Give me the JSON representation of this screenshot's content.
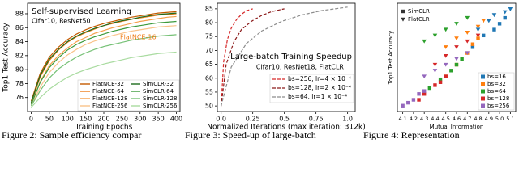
{
  "charts": [
    {
      "type": "line",
      "title": "Self-supervised Learning",
      "subtitle": "Cifar10, ResNet50",
      "annotation": "FlatNCE-16",
      "annotation_color": "#ee7d1a",
      "xlabel": "Training Epochs",
      "ylabel": "Top1 Test Accuracy",
      "xlim": [
        -10,
        410
      ],
      "ylim": [
        74,
        89.5
      ],
      "xticks": [
        0,
        50,
        100,
        150,
        200,
        250,
        300,
        350,
        400
      ],
      "yticks": [
        76,
        78,
        80,
        82,
        84,
        86,
        88
      ],
      "dashed": false,
      "x": [
        0,
        25,
        50,
        75,
        100,
        125,
        150,
        175,
        200,
        225,
        250,
        275,
        300,
        325,
        350,
        375,
        400
      ],
      "series": [
        {
          "name": "FlatNCE-32",
          "color": "#c45a00",
          "values": [
            75.5,
            79.5,
            81.8,
            83.2,
            84.3,
            85.1,
            85.7,
            86.2,
            86.6,
            86.9,
            87.2,
            87.5,
            87.7,
            87.9,
            88.1,
            88.2,
            88.3
          ]
        },
        {
          "name": "FlatNCE-64",
          "color": "#ee7d1a",
          "values": [
            75.2,
            79,
            81.3,
            82.8,
            83.9,
            84.7,
            85.3,
            85.8,
            86.3,
            86.6,
            86.9,
            87.2,
            87.4,
            87.6,
            87.8,
            87.9,
            88.0
          ]
        },
        {
          "name": "FlatNCE-128",
          "color": "#f5a04c",
          "values": [
            75,
            78.3,
            80.6,
            82,
            83.1,
            84,
            84.6,
            85.2,
            85.6,
            86,
            86.3,
            86.6,
            86.9,
            87.1,
            87.3,
            87.5,
            87.6
          ]
        },
        {
          "name": "FlatNCE-256",
          "color": "#f9c38a",
          "values": [
            74.8,
            77.5,
            79.6,
            81,
            82.1,
            82.9,
            83.6,
            84.1,
            84.5,
            84.9,
            85.2,
            85.5,
            85.7,
            85.9,
            86.1,
            86.2,
            86.3
          ]
        },
        {
          "name": "SimCLR-32",
          "color": "#1d6b1d",
          "values": [
            75.3,
            79.2,
            81.5,
            82.9,
            84,
            84.8,
            85.4,
            85.9,
            86.3,
            86.7,
            87,
            87.2,
            87.5,
            87.7,
            87.9,
            88,
            88.1
          ]
        },
        {
          "name": "SimCLR-64",
          "color": "#3c9a3c",
          "values": [
            75,
            78.2,
            80.3,
            81.7,
            82.8,
            83.6,
            84.2,
            84.7,
            85.1,
            85.5,
            85.8,
            86.1,
            86.3,
            86.5,
            86.7,
            86.8,
            86.9
          ]
        },
        {
          "name": "SimCLR-128",
          "color": "#76c176",
          "values": [
            74.8,
            77,
            78.8,
            80.1,
            81,
            81.8,
            82.4,
            82.9,
            83.3,
            83.6,
            83.9,
            84.2,
            84.4,
            84.6,
            84.8,
            84.9,
            85.0
          ]
        },
        {
          "name": "SimCLR-256",
          "color": "#a9dba0",
          "values": [
            74.6,
            76,
            77.2,
            78.1,
            78.9,
            79.5,
            80,
            80.4,
            80.8,
            81.1,
            81.4,
            81.7,
            81.9,
            82.1,
            82.3,
            82.4,
            82.5
          ]
        }
      ]
    },
    {
      "type": "line",
      "title": "Large-batch Training Speedup",
      "subtitle": "Cifar10, ResNet18, FlatCLR",
      "xlabel": "Normalized Iterations (max iteration: 312k)",
      "xlim": [
        -0.03,
        1.06
      ],
      "ylim": [
        48,
        87
      ],
      "xticks": [
        {
          "value": 0,
          "label": "0.0"
        },
        0.25,
        0.5,
        0.75,
        {
          "value": 1,
          "label": "1.0"
        }
      ],
      "yticks": [
        50,
        55,
        60,
        65,
        70,
        75,
        80,
        85
      ],
      "dashed": true,
      "series": [
        {
          "name": "bs=256, lr=4 × 10⁻⁴",
          "color": "#d62728",
          "x": [
            0,
            0.02,
            0.05,
            0.08,
            0.12,
            0.16,
            0.2,
            0.25
          ],
          "values": [
            50,
            66,
            74,
            78,
            81,
            83,
            84.3,
            85
          ]
        },
        {
          "name": "bs=128, lr=2 × 10⁻⁴",
          "color": "#8b1a1a",
          "x": [
            0,
            0.04,
            0.1,
            0.16,
            0.24,
            0.32,
            0.4,
            0.5
          ],
          "values": [
            50,
            65,
            73,
            77.5,
            80.5,
            82.6,
            84,
            85
          ]
        },
        {
          "name": "bs=64, lr=1 × 10⁻⁴",
          "color": "#8c8c8c",
          "x": [
            0,
            0.08,
            0.2,
            0.32,
            0.48,
            0.64,
            0.8,
            1.0
          ],
          "values": [
            50,
            64,
            72.5,
            77,
            80.5,
            82.8,
            84.4,
            85.6
          ]
        }
      ]
    },
    {
      "type": "scatter",
      "xlabel": "Mutual Information",
      "ylabel": "Top1 Test Accuracy",
      "xlim": [
        4.05,
        5.15
      ],
      "ylim": [
        72,
        90.5
      ],
      "xticks": [
        4.1,
        4.2,
        4.3,
        4.4,
        4.5,
        4.6,
        4.7,
        4.8,
        4.9,
        {
          "value": 5,
          "label": "5.0"
        },
        5.1
      ],
      "markers": [
        {
          "name": "SimCLR",
          "shape": "square"
        },
        {
          "name": "FlatCLR",
          "shape": "triangle-down"
        }
      ],
      "groups": [
        {
          "name": "bs=16",
          "color": "#1f77b4"
        },
        {
          "name": "bs=32",
          "color": "#ff7f0e"
        },
        {
          "name": "bs=64",
          "color": "#2ca02c"
        },
        {
          "name": "bs=128",
          "color": "#d62728"
        },
        {
          "name": "bs=256",
          "color": "#9467bd"
        }
      ],
      "series": [
        {
          "marker": 0,
          "group": 0,
          "x": [
            4.75,
            4.85,
            4.95,
            5.0,
            5.05
          ],
          "y": [
            83,
            85,
            86,
            87,
            88
          ]
        },
        {
          "marker": 0,
          "group": 1,
          "x": [
            4.5,
            4.6,
            4.7,
            4.75,
            4.8
          ],
          "y": [
            78,
            80,
            82,
            83.5,
            84.5
          ]
        },
        {
          "marker": 0,
          "group": 2,
          "x": [
            4.35,
            4.45,
            4.55,
            4.6,
            4.65
          ],
          "y": [
            76,
            77.5,
            79,
            80,
            81
          ]
        },
        {
          "marker": 0,
          "group": 3,
          "x": [
            4.25,
            4.3,
            4.4,
            4.45,
            4.5
          ],
          "y": [
            74,
            75,
            76.5,
            77,
            78
          ]
        },
        {
          "marker": 0,
          "group": 4,
          "x": [
            4.1,
            4.15,
            4.2,
            4.25,
            4.3
          ],
          "y": [
            73,
            73.5,
            74,
            75,
            75.5
          ]
        },
        {
          "marker": 1,
          "group": 0,
          "x": [
            4.8,
            4.9,
            4.95,
            5.05,
            5.1
          ],
          "y": [
            86,
            87.5,
            88.5,
            89,
            89.5
          ]
        },
        {
          "marker": 1,
          "group": 1,
          "x": [
            4.5,
            4.6,
            4.7,
            4.8,
            4.85
          ],
          "y": [
            83,
            84.5,
            85.5,
            86.5,
            87.5
          ]
        },
        {
          "marker": 1,
          "group": 2,
          "x": [
            4.3,
            4.4,
            4.5,
            4.6,
            4.7
          ],
          "y": [
            84,
            85,
            86,
            87,
            88
          ]
        },
        {
          "marker": 1,
          "group": 3,
          "x": [
            4.4,
            4.5,
            4.6,
            4.7,
            4.8
          ],
          "y": [
            80,
            81.5,
            83,
            84,
            85
          ]
        },
        {
          "marker": 1,
          "group": 4,
          "x": [
            4.3,
            4.4,
            4.5,
            4.6,
            4.7
          ],
          "y": [
            78,
            79,
            80,
            81,
            82
          ]
        }
      ]
    }
  ],
  "captions": [
    "Figure 2: Sample efficiency compar",
    "Figure 3: Speed-up of large-batch",
    "Figure 4: Representation"
  ]
}
